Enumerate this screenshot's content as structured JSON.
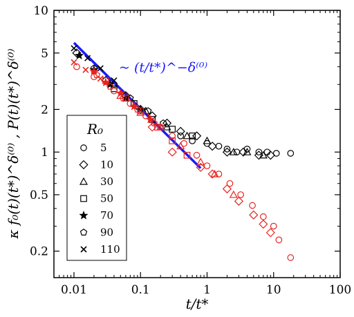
{
  "chart_data": {
    "type": "scatter",
    "title": "",
    "xlabel": "t/t*",
    "ylabel": "κ f₀(t)(t*)^δ⁽⁰⁾ , P(t)(t*)^δ⁽⁰⁾",
    "xscale": "log",
    "yscale": "log",
    "xlim": [
      0.005,
      100
    ],
    "ylim": [
      0.13,
      10
    ],
    "xticks": [
      0.01,
      0.1,
      1,
      10,
      100
    ],
    "xtick_labels": [
      "0.01",
      "0.1",
      "1",
      "10",
      "100"
    ],
    "yticks": [
      0.2,
      0.5,
      1,
      2,
      5,
      10
    ],
    "ytick_labels": [
      "0.2",
      "0.5",
      "1",
      "2",
      "5",
      "10"
    ],
    "grid": false,
    "legend": {
      "title": "R₀",
      "placement": "lower-left",
      "entries": [
        {
          "label": "5",
          "marker": "circle"
        },
        {
          "label": "10",
          "marker": "diamond"
        },
        {
          "label": "30",
          "marker": "triangle"
        },
        {
          "label": "50",
          "marker": "square"
        },
        {
          "label": "70",
          "marker": "star"
        },
        {
          "label": "90",
          "marker": "pentagon"
        },
        {
          "label": "110",
          "marker": "x"
        }
      ]
    },
    "fit_line": {
      "label": "~ (t/t*)^−δ⁽⁰⁾",
      "color": "#1a1aff",
      "x": [
        0.01,
        0.8
      ],
      "y": [
        5.9,
        0.77
      ]
    },
    "series": [
      {
        "group": "black",
        "color": "#000000",
        "marker": "circle",
        "x": [
          0.4,
          0.6,
          1.0,
          1.5,
          2.0,
          2.8,
          4.0,
          6.0,
          8.0,
          11.0,
          18.0
        ],
        "y": [
          1.3,
          1.2,
          1.15,
          1.1,
          1.05,
          1.0,
          1.05,
          1.0,
          1.0,
          0.98,
          0.98
        ]
      },
      {
        "group": "black",
        "color": "#000000",
        "marker": "diamond",
        "x": [
          0.011,
          0.03,
          0.06,
          0.1,
          0.15,
          0.25,
          0.4,
          0.7,
          1.2,
          2.0,
          3.5,
          6.0,
          9.0
        ],
        "y": [
          5.0,
          3.2,
          2.5,
          2.0,
          1.8,
          1.6,
          1.4,
          1.3,
          1.1,
          1.0,
          1.0,
          0.95,
          0.95
        ]
      },
      {
        "group": "black",
        "color": "#000000",
        "marker": "triangle",
        "x": [
          0.12,
          0.25,
          0.5,
          1.0,
          2.5,
          4.0,
          7.0
        ],
        "y": [
          1.95,
          1.5,
          1.3,
          1.2,
          1.0,
          1.0,
          0.95
        ]
      },
      {
        "group": "black",
        "color": "#000000",
        "marker": "square",
        "x": [
          0.04,
          0.08,
          0.15,
          0.3,
          0.6
        ],
        "y": [
          2.8,
          2.2,
          1.7,
          1.45,
          1.3
        ]
      },
      {
        "group": "black",
        "color": "#000000",
        "marker": "star",
        "x": [
          0.012,
          0.02,
          0.035,
          0.06,
          0.1
        ],
        "y": [
          4.8,
          3.8,
          3.0,
          2.4,
          2.0
        ]
      },
      {
        "group": "black",
        "color": "#000000",
        "marker": "pentagon",
        "x": [
          0.02,
          0.04,
          0.07,
          0.13,
          0.22
        ],
        "y": [
          3.9,
          3.0,
          2.4,
          1.95,
          1.6
        ]
      },
      {
        "group": "black",
        "color": "#000000",
        "marker": "x",
        "x": [
          0.01,
          0.016,
          0.025,
          0.04
        ],
        "y": [
          5.4,
          4.6,
          3.9,
          3.2
        ]
      },
      {
        "group": "red",
        "color": "#e8231f",
        "marker": "circle",
        "x": [
          0.011,
          0.02,
          0.04,
          0.07,
          0.12,
          0.2,
          0.3,
          0.45,
          0.7,
          1.0,
          1.5,
          2.2,
          3.2,
          4.8,
          7.0,
          10.0,
          12.0,
          18.0
        ],
        "y": [
          4.0,
          3.4,
          2.7,
          2.2,
          1.8,
          1.5,
          1.3,
          1.15,
          0.95,
          0.8,
          0.7,
          0.6,
          0.5,
          0.42,
          0.35,
          0.3,
          0.24,
          0.18
        ]
      },
      {
        "group": "red",
        "color": "#e8231f",
        "marker": "diamond",
        "x": [
          0.15,
          0.3,
          0.8,
          1.2,
          2.0,
          3.0,
          5.0,
          7.0,
          9.0
        ],
        "y": [
          1.5,
          1.0,
          0.78,
          0.7,
          0.55,
          0.45,
          0.36,
          0.31,
          0.27
        ]
      },
      {
        "group": "red",
        "color": "#e8231f",
        "marker": "triangle",
        "x": [
          0.05,
          0.1,
          0.2,
          0.4,
          0.8,
          1.3,
          2.5
        ],
        "y": [
          2.5,
          1.9,
          1.5,
          1.1,
          0.85,
          0.7,
          0.5
        ]
      },
      {
        "group": "red",
        "color": "#e8231f",
        "marker": "square",
        "x": [
          0.03,
          0.06,
          0.1,
          0.18,
          0.3,
          0.5
        ],
        "y": [
          3.2,
          2.4,
          1.95,
          1.5,
          1.2,
          0.95
        ]
      },
      {
        "group": "red",
        "color": "#e8231f",
        "marker": "star",
        "x": [
          0.02,
          0.03,
          0.05,
          0.08,
          0.14
        ],
        "y": [
          3.7,
          3.1,
          2.6,
          2.1,
          1.7
        ]
      },
      {
        "group": "red",
        "color": "#e8231f",
        "marker": "pentagon",
        "x": [
          0.022,
          0.035,
          0.055,
          0.09,
          0.16
        ],
        "y": [
          3.5,
          2.9,
          2.4,
          2.0,
          1.6
        ]
      },
      {
        "group": "red",
        "color": "#e8231f",
        "marker": "x",
        "x": [
          0.01,
          0.015,
          0.025
        ],
        "y": [
          4.3,
          3.8,
          3.3
        ]
      }
    ]
  }
}
